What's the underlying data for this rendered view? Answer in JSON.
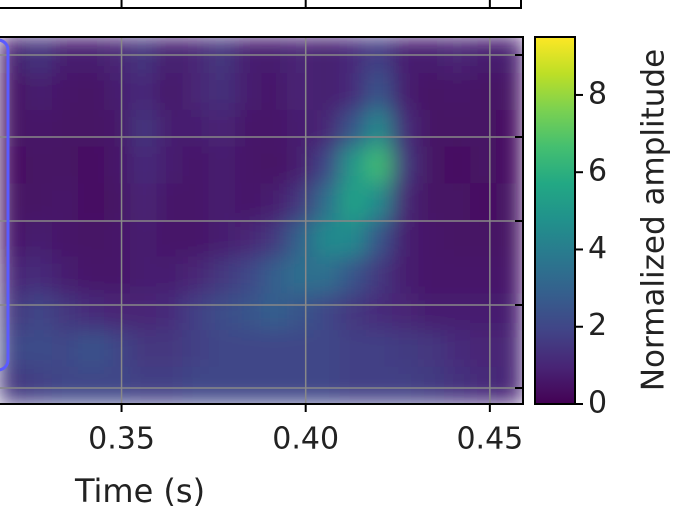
{
  "chart_data": {
    "type": "heatmap",
    "xlabel": "Time (s)",
    "colorbar_label": "Normalized amplitude",
    "xlim": [
      0.317,
      0.459
    ],
    "xticks": [
      0.35,
      {
        "value": 0.4,
        "label": "0.40"
      },
      0.45
    ],
    "clim": [
      0,
      9.5
    ],
    "cticks": [
      0,
      2,
      4,
      6,
      8
    ],
    "colormap": "viridis",
    "grid": true,
    "z": [
      [
        0.8,
        1.5,
        0.8,
        0.8,
        1,
        1.5,
        0.8,
        1,
        1.5,
        0.8,
        0.8,
        1,
        0.8,
        1.2,
        1.8,
        0.8,
        0.8,
        1,
        0.8,
        0.8
      ],
      [
        0.5,
        0.8,
        0.6,
        0.5,
        0.8,
        1.2,
        0.6,
        1,
        1.3,
        0.8,
        0.6,
        1,
        0.8,
        1.2,
        2.5,
        0.8,
        0.5,
        0.6,
        0.5,
        0.5
      ],
      [
        0.5,
        0.6,
        0.5,
        0.5,
        0.6,
        1.5,
        0.8,
        0.8,
        1,
        0.6,
        0.6,
        0.8,
        1,
        2.5,
        4.5,
        1.2,
        0.5,
        0.5,
        0.5,
        0.4
      ],
      [
        0.4,
        0.5,
        0.5,
        0.4,
        0.6,
        1.2,
        0.8,
        0.6,
        0.8,
        0.6,
        0.5,
        0.8,
        2,
        5,
        6.5,
        1.5,
        0.5,
        0.4,
        0.5,
        0.4
      ],
      [
        0.5,
        0.5,
        0.6,
        0.4,
        0.5,
        1,
        0.6,
        0.6,
        0.8,
        0.6,
        0.8,
        1.5,
        3.5,
        5.5,
        4.5,
        1,
        0.5,
        0.5,
        0.4,
        0.5
      ],
      [
        0.6,
        0.8,
        0.6,
        0.5,
        0.6,
        0.8,
        0.6,
        0.6,
        0.8,
        1,
        1.5,
        3,
        4.5,
        4.5,
        2.5,
        0.8,
        0.6,
        0.5,
        0.5,
        0.5
      ],
      [
        1,
        1.2,
        0.8,
        0.6,
        0.6,
        0.8,
        0.8,
        1,
        1.5,
        2,
        2.8,
        3.5,
        3.5,
        2.5,
        1.5,
        0.8,
        0.6,
        0.6,
        0.6,
        0.6
      ],
      [
        1.5,
        2,
        1.5,
        1.2,
        1,
        1,
        1.2,
        1.8,
        2.2,
        2.5,
        2.8,
        2.5,
        2,
        1.5,
        1.2,
        1,
        0.8,
        0.8,
        0.8,
        0.8
      ],
      [
        2,
        2.2,
        2,
        2.5,
        2,
        1.5,
        1.5,
        1.8,
        2,
        2,
        2,
        2,
        2,
        1.8,
        1.8,
        1.6,
        1.5,
        1.2,
        1,
        1
      ],
      [
        1.5,
        1.8,
        2,
        2,
        2,
        1.8,
        1.8,
        2,
        2,
        2,
        2,
        2,
        2,
        1.8,
        1.8,
        1.8,
        1.6,
        1.4,
        1.2,
        1
      ]
    ]
  }
}
